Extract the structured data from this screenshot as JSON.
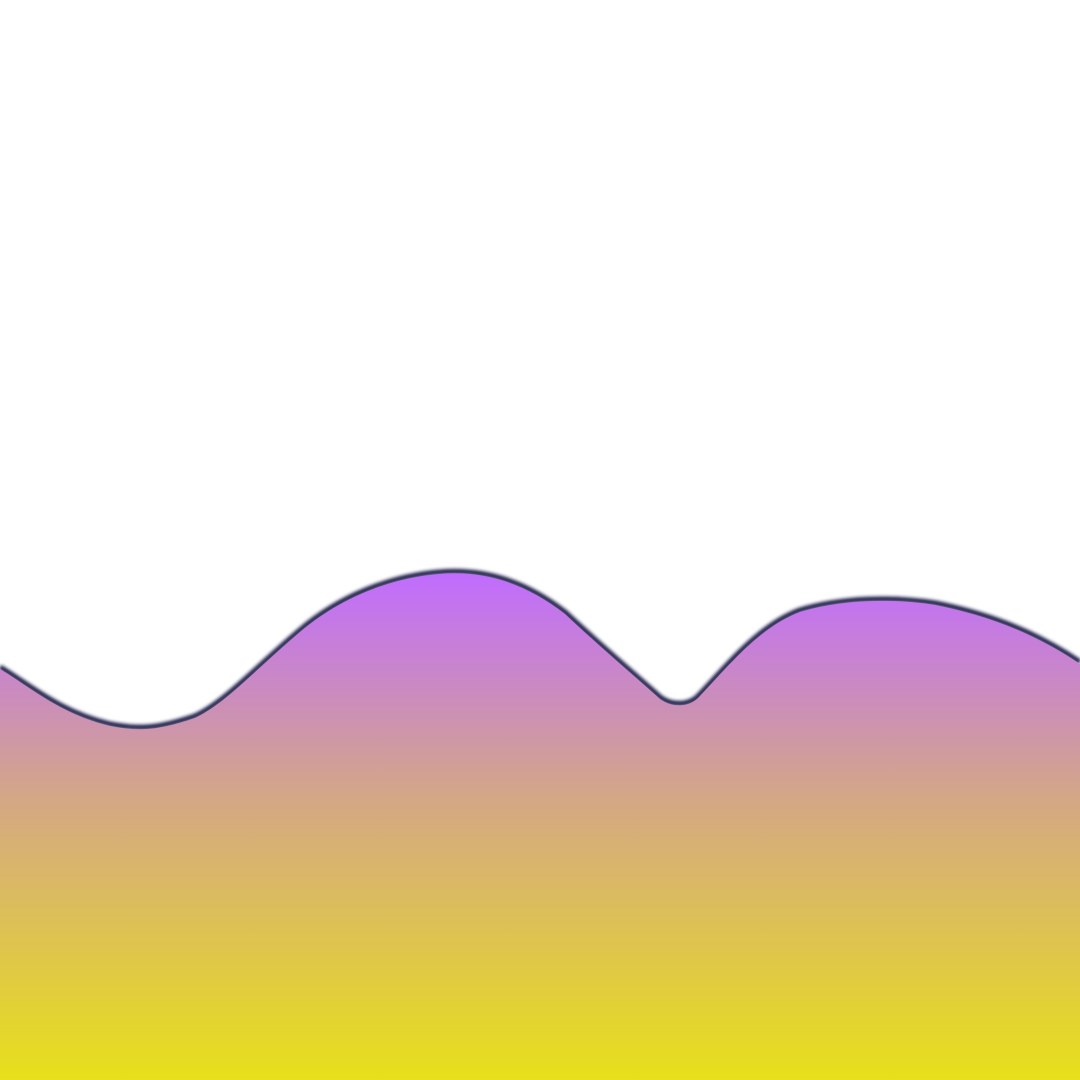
{
  "colors": {
    "background": "#ffffff",
    "gradient_top": "#c06cff",
    "gradient_mid": "#d4a884",
    "gradient_bottom": "#e8e01a",
    "outline": "#1e1a4a"
  }
}
